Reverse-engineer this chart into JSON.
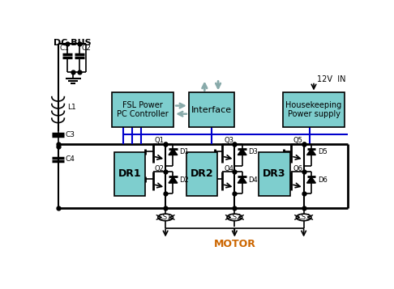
{
  "bg": "#ffffff",
  "teal": "#7ecece",
  "blk": "#000000",
  "blue": "#0000cc",
  "gray": "#88aaaa",
  "orange": "#cc6600",
  "dc_bus": "DC BUS",
  "motor": "MOTOR",
  "v12": "12V  IN",
  "fsl": "FSL Power\nPC Controller",
  "iface": "Interface",
  "hk": "Housekeeping\nPower supply",
  "dr1": "DR1",
  "dr2": "DR2",
  "dr3": "DR3"
}
